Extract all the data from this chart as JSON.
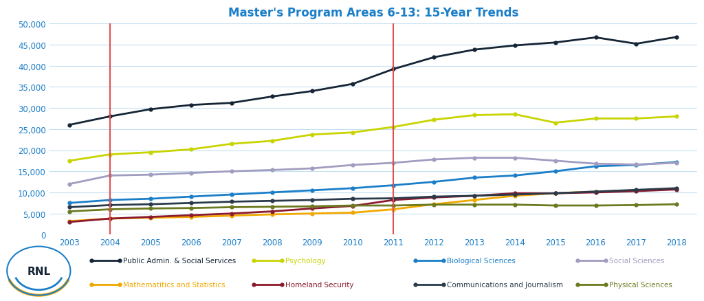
{
  "title": "Master's Program Areas 6-13: 15-Year Trends",
  "years": [
    2003,
    2004,
    2005,
    2006,
    2007,
    2008,
    2009,
    2010,
    2011,
    2012,
    2013,
    2014,
    2015,
    2016,
    2017,
    2018
  ],
  "series_order": [
    "Public Admin. & Social Services",
    "Psychology",
    "Biological Sciences",
    "Social Sciences",
    "Mathematitics and Statistics",
    "Homeland Security",
    "Communications and Journalism",
    "Physical Sciences"
  ],
  "series": {
    "Public Admin. & Social Services": {
      "color": "#152535",
      "values": [
        26000,
        28000,
        29700,
        30700,
        31200,
        32700,
        34000,
        35700,
        39200,
        42000,
        43800,
        44800,
        45500,
        46700,
        45200,
        46800
      ]
    },
    "Psychology": {
      "color": "#c8d400",
      "values": [
        17500,
        19000,
        19500,
        20200,
        21500,
        22200,
        23700,
        24200,
        25500,
        27200,
        28300,
        28500,
        26500,
        27500,
        27500,
        28000
      ]
    },
    "Biological Sciences": {
      "color": "#1a7ec8",
      "values": [
        7500,
        8200,
        8500,
        9000,
        9500,
        10000,
        10500,
        11000,
        11700,
        12500,
        13500,
        14000,
        15000,
        16200,
        16500,
        17200
      ]
    },
    "Social Sciences": {
      "color": "#a09dc0",
      "values": [
        12000,
        14000,
        14200,
        14600,
        15000,
        15300,
        15700,
        16500,
        17000,
        17800,
        18200,
        18200,
        17500,
        16800,
        16600,
        17000
      ]
    },
    "Mathematitics and Statistics": {
      "color": "#f0a800",
      "values": [
        3200,
        3800,
        4000,
        4200,
        4500,
        4800,
        5000,
        5200,
        6000,
        7200,
        8200,
        9200,
        9800,
        10200,
        10500,
        10800
      ]
    },
    "Homeland Security": {
      "color": "#8b1a2e",
      "values": [
        3000,
        3800,
        4200,
        4600,
        5000,
        5500,
        6200,
        6800,
        8200,
        8800,
        9200,
        9800,
        9800,
        10000,
        10300,
        10700
      ]
    },
    "Communications and Journalism": {
      "color": "#2a3a4a",
      "values": [
        6500,
        7000,
        7200,
        7500,
        7800,
        8000,
        8200,
        8500,
        8600,
        9000,
        9200,
        9500,
        9800,
        10200,
        10600,
        11000
      ]
    },
    "Physical Sciences": {
      "color": "#6b7a20",
      "values": [
        5500,
        6000,
        6200,
        6300,
        6500,
        6600,
        6700,
        6900,
        6900,
        7100,
        7100,
        7100,
        6900,
        6900,
        7000,
        7200
      ]
    }
  },
  "legend_row1": [
    "Public Admin. & Social Services",
    "Psychology",
    "Biological Sciences",
    "Social Sciences"
  ],
  "legend_row2": [
    "Mathematitics and Statistics",
    "Homeland Security",
    "Communications and Journalism",
    "Physical Sciences"
  ],
  "legend_text_colors": {
    "Public Admin. & Social Services": "#152535",
    "Psychology": "#c8d400",
    "Biological Sciences": "#1a7ec8",
    "Social Sciences": "#a09dc0",
    "Mathematitics and Statistics": "#f0a800",
    "Homeland Security": "#8b1a2e",
    "Communications and Journalism": "#2a3a4a",
    "Physical Sciences": "#6b7a20"
  },
  "vlines": [
    2004,
    2011
  ],
  "ylim": [
    0,
    50000
  ],
  "yticks": [
    0,
    5000,
    10000,
    15000,
    20000,
    25000,
    30000,
    35000,
    40000,
    45000,
    50000
  ],
  "bg_color": "#ffffff",
  "grid_color": "#c5dff0",
  "title_color": "#1a7ec8",
  "vline_color": "#e05050",
  "axis_label_color": "#1a7ec8"
}
